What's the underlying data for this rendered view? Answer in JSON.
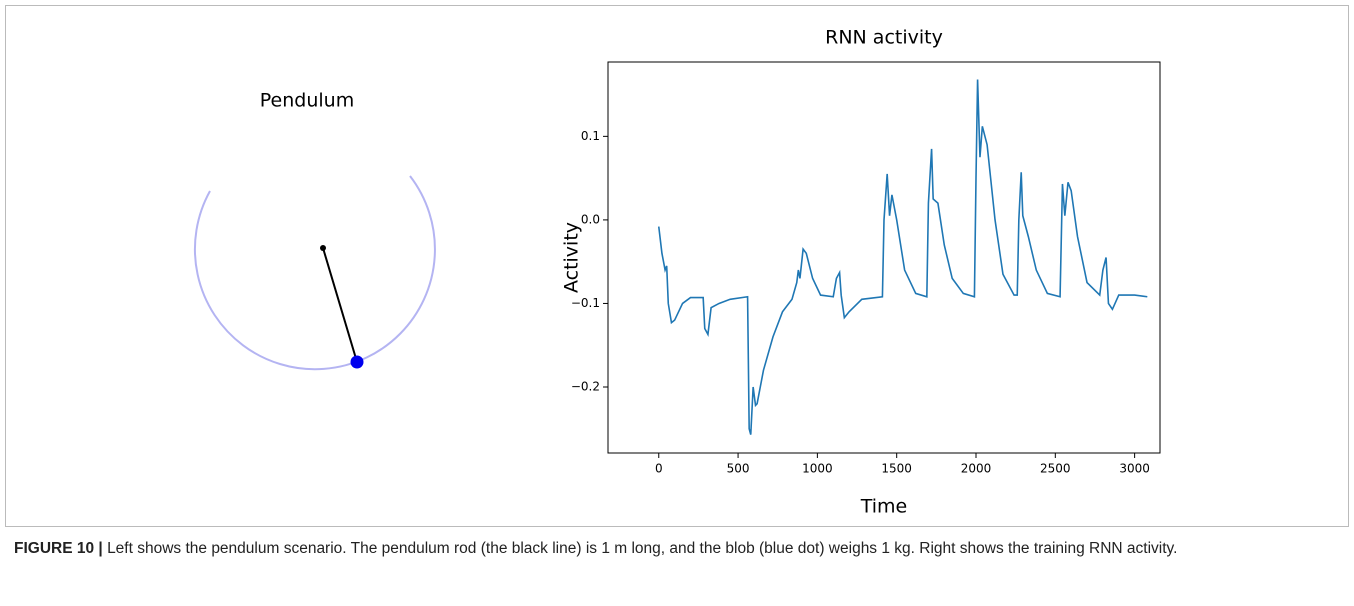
{
  "pendulum": {
    "title": "Pendulum"
  },
  "chart_data": {
    "type": "line",
    "title": "RNN activity",
    "xlabel": "Time",
    "ylabel": "Activity",
    "x": [
      0,
      20,
      40,
      50,
      60,
      80,
      100,
      150,
      200,
      280,
      290,
      310,
      330,
      380,
      450,
      560,
      570,
      580,
      595,
      610,
      620,
      660,
      720,
      780,
      840,
      870,
      880,
      890,
      910,
      930,
      970,
      1020,
      1100,
      1120,
      1140,
      1150,
      1170,
      1200,
      1280,
      1410,
      1420,
      1440,
      1455,
      1470,
      1500,
      1550,
      1620,
      1690,
      1700,
      1720,
      1730,
      1760,
      1800,
      1850,
      1920,
      1990,
      2000,
      2010,
      2025,
      2040,
      2070,
      2120,
      2170,
      2240,
      2260,
      2270,
      2285,
      2295,
      2330,
      2380,
      2450,
      2530,
      2545,
      2560,
      2580,
      2600,
      2640,
      2700,
      2780,
      2800,
      2820,
      2835,
      2860,
      2900,
      3000,
      3080
    ],
    "series": [
      {
        "color": "#1f77b4",
        "values": [
          -0.008,
          -0.04,
          -0.06,
          -0.055,
          -0.1,
          -0.123,
          -0.12,
          -0.1,
          -0.093,
          -0.093,
          -0.13,
          -0.137,
          -0.105,
          -0.1,
          -0.095,
          -0.092,
          -0.25,
          -0.257,
          -0.2,
          -0.222,
          -0.22,
          -0.18,
          -0.14,
          -0.11,
          -0.095,
          -0.075,
          -0.06,
          -0.07,
          -0.035,
          -0.04,
          -0.07,
          -0.09,
          -0.092,
          -0.07,
          -0.063,
          -0.09,
          -0.117,
          -0.11,
          -0.095,
          -0.092,
          0.0,
          0.055,
          0.005,
          0.03,
          0.0,
          -0.06,
          -0.088,
          -0.092,
          0.02,
          0.085,
          0.025,
          0.02,
          -0.03,
          -0.07,
          -0.088,
          -0.092,
          0.05,
          0.168,
          0.075,
          0.112,
          0.09,
          0.0,
          -0.065,
          -0.09,
          -0.09,
          0.0,
          0.057,
          0.005,
          -0.02,
          -0.06,
          -0.088,
          -0.092,
          0.043,
          0.005,
          0.045,
          0.035,
          -0.02,
          -0.075,
          -0.09,
          -0.06,
          -0.045,
          -0.1,
          -0.107,
          -0.09,
          -0.09,
          -0.092
        ]
      }
    ],
    "xlim": [
      -320,
      3160
    ],
    "ylim": [
      -0.279,
      0.189
    ],
    "xticks": [
      0,
      500,
      1000,
      1500,
      2000,
      2500,
      3000
    ],
    "yticks": [
      {
        "value": -0.2,
        "label": "−0.2"
      },
      {
        "value": -0.1,
        "label": "−0.1"
      },
      {
        "value": 0,
        "label": "0.0"
      },
      0.1
    ]
  },
  "caption": {
    "label": "FIGURE 10 |",
    "text": "Left shows the pendulum scenario. The pendulum rod (the black line) is 1 m long, and the blob (blue dot) weighs 1 kg. Right shows the training RNN activity."
  }
}
